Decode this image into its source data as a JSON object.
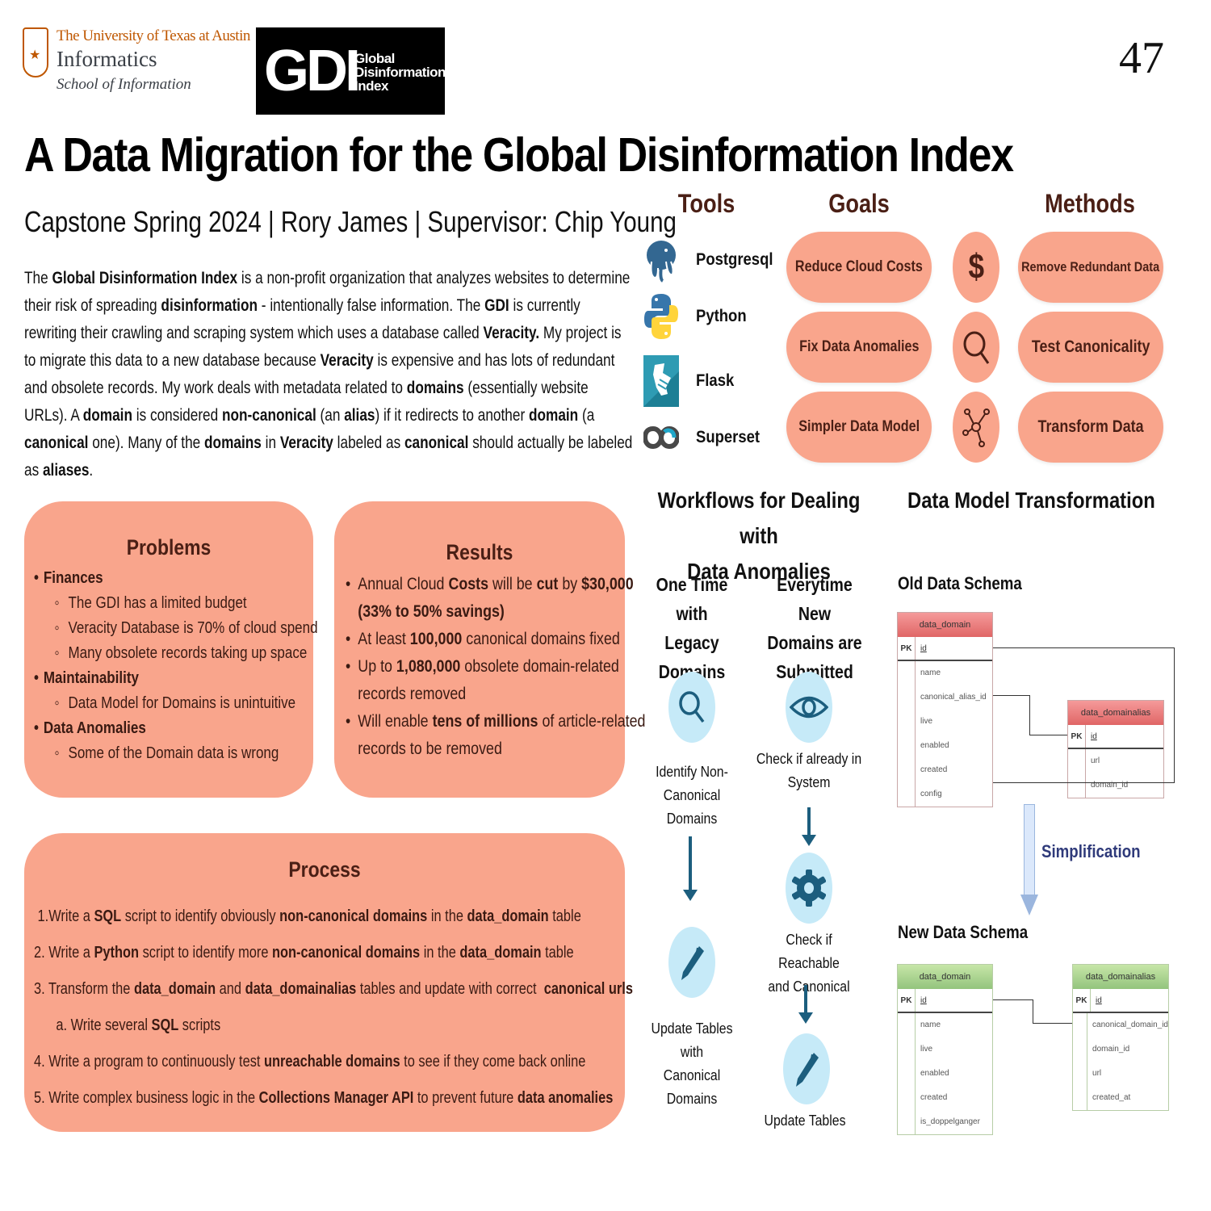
{
  "header": {
    "ut_logo": {
      "line1": "The University of Texas at Austin",
      "line2": "Informatics",
      "line3": "School of Information"
    },
    "gdi_logo": {
      "mark": "GDI",
      "line1": "Global",
      "line2": "Disinformation",
      "line3": "Index"
    },
    "page_number": "47",
    "title": "A Data Migration for the Global Disinformation Index",
    "subtitle": "Capstone Spring 2024 | Rory James | Supervisor: Chip Young"
  },
  "intro": {
    "segments": [
      {
        "t": "The ",
        "b": false
      },
      {
        "t": "Global Disinformation Index",
        "b": true
      },
      {
        "t": " is a non-profit organization that analyzes websites to determine their risk of spreading ",
        "b": false
      },
      {
        "t": "disinformation",
        "b": true
      },
      {
        "t": " - intentionally false information. The ",
        "b": false
      },
      {
        "t": "GDI",
        "b": true
      },
      {
        "t": " is currently rewriting their crawling and scraping system which uses a database called ",
        "b": false
      },
      {
        "t": "Veracity.",
        "b": true
      },
      {
        "t": " My project is to migrate this data to a new database because ",
        "b": false
      },
      {
        "t": "Veracity",
        "b": true
      },
      {
        "t": " is expensive and has lots of redundant and obsolete records. My work deals with metadata related to ",
        "b": false
      },
      {
        "t": "domains",
        "b": true
      },
      {
        "t": " (essentially website URLs). A ",
        "b": false
      },
      {
        "t": "domain",
        "b": true
      },
      {
        "t": " is considered ",
        "b": false
      },
      {
        "t": "non-canonical",
        "b": true
      },
      {
        "t": " (an ",
        "b": false
      },
      {
        "t": "alias",
        "b": true
      },
      {
        "t": ") if it redirects to another ",
        "b": false
      },
      {
        "t": "domain",
        "b": true
      },
      {
        "t": " (a ",
        "b": false
      },
      {
        "t": "canonical",
        "b": true
      },
      {
        "t": " one). Many of the ",
        "b": false
      },
      {
        "t": "domains",
        "b": true
      },
      {
        "t": " in ",
        "b": false
      },
      {
        "t": "Veracity",
        "b": true
      },
      {
        "t": " labeled as ",
        "b": false
      },
      {
        "t": "canonical",
        "b": true
      },
      {
        "t": " should actually be labeled as ",
        "b": false
      },
      {
        "t": "aliases",
        "b": true
      },
      {
        "t": ".",
        "b": false
      }
    ]
  },
  "tools": {
    "heading": "Tools",
    "items": [
      {
        "label": "Postgresql",
        "icon": "postgresql-elephant-icon"
      },
      {
        "label": "Python",
        "icon": "python-icon"
      },
      {
        "label": "Flask",
        "icon": "flask-icon"
      },
      {
        "label": "Superset",
        "icon": "superset-infinity-icon"
      }
    ]
  },
  "goals": {
    "heading": "Goals",
    "items": [
      {
        "label": "Reduce Cloud Costs",
        "icon": "dollar-icon"
      },
      {
        "label": "Fix Data Anomalies",
        "icon": "magnifier-icon"
      },
      {
        "label": "Simpler Data Model",
        "icon": "network-hub-icon"
      }
    ]
  },
  "methods": {
    "heading": "Methods",
    "items": [
      {
        "label": "Remove Redundant Data"
      },
      {
        "label": "Test Canonicality"
      },
      {
        "label": "Transform Data"
      }
    ]
  },
  "problems": {
    "title": "Problems",
    "groups": [
      {
        "label": "Finances",
        "items": [
          "The GDI has a limited budget",
          "Veracity Database  is 70% of cloud spend",
          "Many obsolete records taking up space"
        ]
      },
      {
        "label": "Maintainability",
        "items": [
          "Data Model for Domains is unintuitive"
        ]
      },
      {
        "label": "Data Anomalies",
        "items": [
          "Some of the Domain data is wrong"
        ]
      }
    ]
  },
  "results": {
    "title": "Results",
    "items": [
      [
        {
          "t": "Annual Cloud ",
          "b": false
        },
        {
          "t": "Costs",
          "b": true
        },
        {
          "t": " will be ",
          "b": false
        },
        {
          "t": "cut",
          "b": true
        },
        {
          "t": " by ",
          "b": false
        },
        {
          "t": "$30,000 (33% to 50% savings)",
          "b": true
        }
      ],
      [
        {
          "t": "At least ",
          "b": false
        },
        {
          "t": "100,000",
          "b": true
        },
        {
          "t": " canonical domains fixed",
          "b": false
        }
      ],
      [
        {
          "t": "Up to ",
          "b": false
        },
        {
          "t": "1,080,000",
          "b": true
        },
        {
          "t": " obsolete domain-related records removed",
          "b": false
        }
      ],
      [
        {
          "t": "Will  enable ",
          "b": false
        },
        {
          "t": "tens of millions",
          "b": true
        },
        {
          "t": " of article-related records to be removed",
          "b": false
        }
      ]
    ]
  },
  "process": {
    "title": "Process",
    "steps": [
      [
        {
          "t": " 1.Write a ",
          "b": false
        },
        {
          "t": "SQL",
          "b": true
        },
        {
          "t": " script to identify obviously ",
          "b": false
        },
        {
          "t": "non-canonical domains",
          "b": true
        },
        {
          "t": " in the ",
          "b": false
        },
        {
          "t": "data_domain",
          "b": true
        },
        {
          "t": " table",
          "b": false
        }
      ],
      [
        {
          "t": "2. Write a ",
          "b": false
        },
        {
          "t": "Python",
          "b": true
        },
        {
          "t": " script to identify more ",
          "b": false
        },
        {
          "t": "non-canonical domains",
          "b": true
        },
        {
          "t": " in the ",
          "b": false
        },
        {
          "t": "data_domain",
          "b": true
        },
        {
          "t": " table",
          "b": false
        }
      ],
      [
        {
          "t": "3. Transform the ",
          "b": false
        },
        {
          "t": "data_domain",
          "b": true
        },
        {
          "t": " and ",
          "b": false
        },
        {
          "t": "data_domainalias",
          "b": true
        },
        {
          "t": " tables and update with correct  ",
          "b": false
        },
        {
          "t": "canonical urls",
          "b": true
        }
      ],
      [
        {
          "t": "      a. Write several ",
          "b": false
        },
        {
          "t": "SQL",
          "b": true
        },
        {
          "t": " scripts",
          "b": false
        }
      ],
      [
        {
          "t": "4. Write a program to continuously test ",
          "b": false
        },
        {
          "t": "unreachable domains",
          "b": true
        },
        {
          "t": " to see if they come back online",
          "b": false
        }
      ],
      [
        {
          "t": "5. Write complex business logic in the ",
          "b": false
        },
        {
          "t": "Collections Manager API",
          "b": true
        },
        {
          "t": " to prevent future ",
          "b": false
        },
        {
          "t": "data anomalies",
          "b": true
        }
      ]
    ]
  },
  "workflows": {
    "title_line1": "Workflows for Dealing with",
    "title_line2": "Data Anomalies",
    "left": {
      "heading_line1": "One Time with",
      "heading_line2": "Legacy Domains",
      "steps": [
        {
          "icon": "magnifier-icon",
          "line1": "Identify Non-",
          "line2": "Canonical Domains"
        },
        {
          "icon": "pen-icon",
          "line1": "Update Tables with",
          "line2": "Canonical Domains"
        }
      ]
    },
    "right": {
      "heading_line1": "Everytime New",
      "heading_line2": "Domains are",
      "heading_line3": "Submitted",
      "steps": [
        {
          "icon": "eye-icon",
          "line1": "Check if already in",
          "line2": "System"
        },
        {
          "icon": "gear-icon",
          "line1": "Check if Reachable",
          "line2": "and Canonical"
        },
        {
          "icon": "pen-icon",
          "line1": "Update Tables",
          "line2": ""
        }
      ]
    }
  },
  "data_model": {
    "title": "Data Model Transformation",
    "old_title": "Old Data Schema",
    "new_title": "New Data Schema",
    "simplification_label": "Simplification",
    "old_tables": [
      {
        "name": "data_domain",
        "pk": "id",
        "fields": [
          "name",
          "canonical_alias_id",
          "live",
          "enabled",
          "created",
          "config"
        ]
      },
      {
        "name": "data_domainalias",
        "pk": "id",
        "fields": [
          "url",
          "domain_id"
        ]
      }
    ],
    "new_tables": [
      {
        "name": "data_domain",
        "pk": "id",
        "fields": [
          "name",
          "live",
          "enabled",
          "created",
          "is_doppelganger"
        ]
      },
      {
        "name": "data_domainalias",
        "pk": "id",
        "fields": [
          "canonical_domain_id",
          "domain_id",
          "url",
          "created_at"
        ]
      }
    ],
    "pk_label": "PK"
  },
  "colors": {
    "salmon": "#f9a58c",
    "dark_brown": "#4a1f15",
    "teal": "#1c5e7e",
    "light_blue": "#c6eaf8",
    "ut_orange": "#bf5700",
    "simplification_blue": "#2f3a7a"
  }
}
